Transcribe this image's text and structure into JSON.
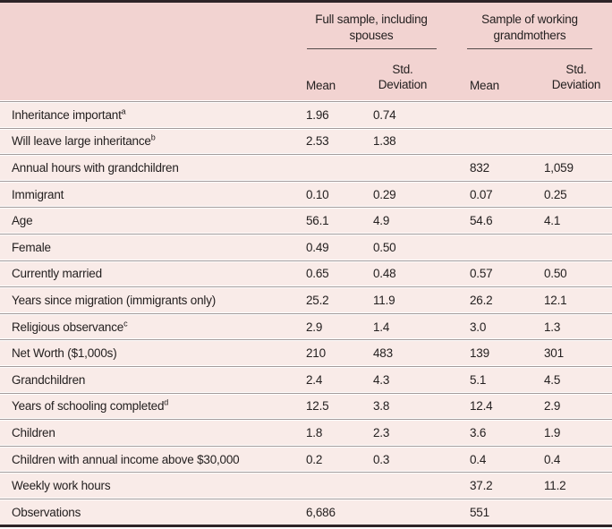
{
  "table": {
    "header": {
      "groups": [
        {
          "line1": "Full sample, including",
          "line2": "spouses"
        },
        {
          "line1": "Sample of working",
          "line2": "grandmothers"
        }
      ],
      "mean_label": "Mean",
      "std_line1": "Std.",
      "std_line2": "Deviation"
    },
    "rows": [
      {
        "label": "Inheritance important",
        "sup": "a",
        "full_mean": "1.96",
        "full_std": "0.74",
        "work_mean": "",
        "work_std": ""
      },
      {
        "label": "Will leave large inheritance",
        "sup": "b",
        "full_mean": "2.53",
        "full_std": "1.38",
        "work_mean": "",
        "work_std": ""
      },
      {
        "label": "Annual hours with grandchildren",
        "sup": "",
        "full_mean": "",
        "full_std": "",
        "work_mean": "832",
        "work_std": "1,059"
      },
      {
        "label": "Immigrant",
        "sup": "",
        "full_mean": "0.10",
        "full_std": "0.29",
        "work_mean": "0.07",
        "work_std": "0.25"
      },
      {
        "label": "Age",
        "sup": "",
        "full_mean": "56.1",
        "full_std": "4.9",
        "work_mean": "54.6",
        "work_std": "4.1"
      },
      {
        "label": "Female",
        "sup": "",
        "full_mean": "0.49",
        "full_std": "0.50",
        "work_mean": "",
        "work_std": ""
      },
      {
        "label": "Currently married",
        "sup": "",
        "full_mean": "0.65",
        "full_std": "0.48",
        "work_mean": "0.57",
        "work_std": "0.50"
      },
      {
        "label": "Years since migration (immigrants only)",
        "sup": "",
        "full_mean": "25.2",
        "full_std": "11.9",
        "work_mean": "26.2",
        "work_std": "12.1"
      },
      {
        "label": "Religious observance",
        "sup": "c",
        "full_mean": "2.9",
        "full_std": "1.4",
        "work_mean": "3.0",
        "work_std": "1.3"
      },
      {
        "label": "Net Worth ($1,000s)",
        "sup": "",
        "full_mean": "210",
        "full_std": "483",
        "work_mean": "139",
        "work_std": "301"
      },
      {
        "label": "Grandchildren",
        "sup": "",
        "full_mean": "2.4",
        "full_std": "4.3",
        "work_mean": "5.1",
        "work_std": "4.5"
      },
      {
        "label": "Years of schooling completed",
        "sup": "d",
        "full_mean": "12.5",
        "full_std": "3.8",
        "work_mean": "12.4",
        "work_std": "2.9"
      },
      {
        "label": "Children",
        "sup": "",
        "full_mean": "1.8",
        "full_std": "2.3",
        "work_mean": "3.6",
        "work_std": "1.9"
      },
      {
        "label": "Children with annual income above $30,000",
        "sup": "",
        "full_mean": "0.2",
        "full_std": "0.3",
        "work_mean": "0.4",
        "work_std": "0.4"
      },
      {
        "label": "Weekly work hours",
        "sup": "",
        "full_mean": "",
        "full_std": "",
        "work_mean": "37.2",
        "work_std": "11.2"
      },
      {
        "label": "Observations",
        "sup": "",
        "full_mean": "6,686",
        "full_std": "",
        "work_mean": "551",
        "work_std": ""
      }
    ],
    "colors": {
      "header_bg": "#f2d3d1",
      "row_bg": "#f9ebe8",
      "border_dark": "#2e2427",
      "divider_gray": "#a39b9b",
      "divider_light": "#fffdfd",
      "group_rule": "#544a4a",
      "text": "#242020"
    }
  }
}
